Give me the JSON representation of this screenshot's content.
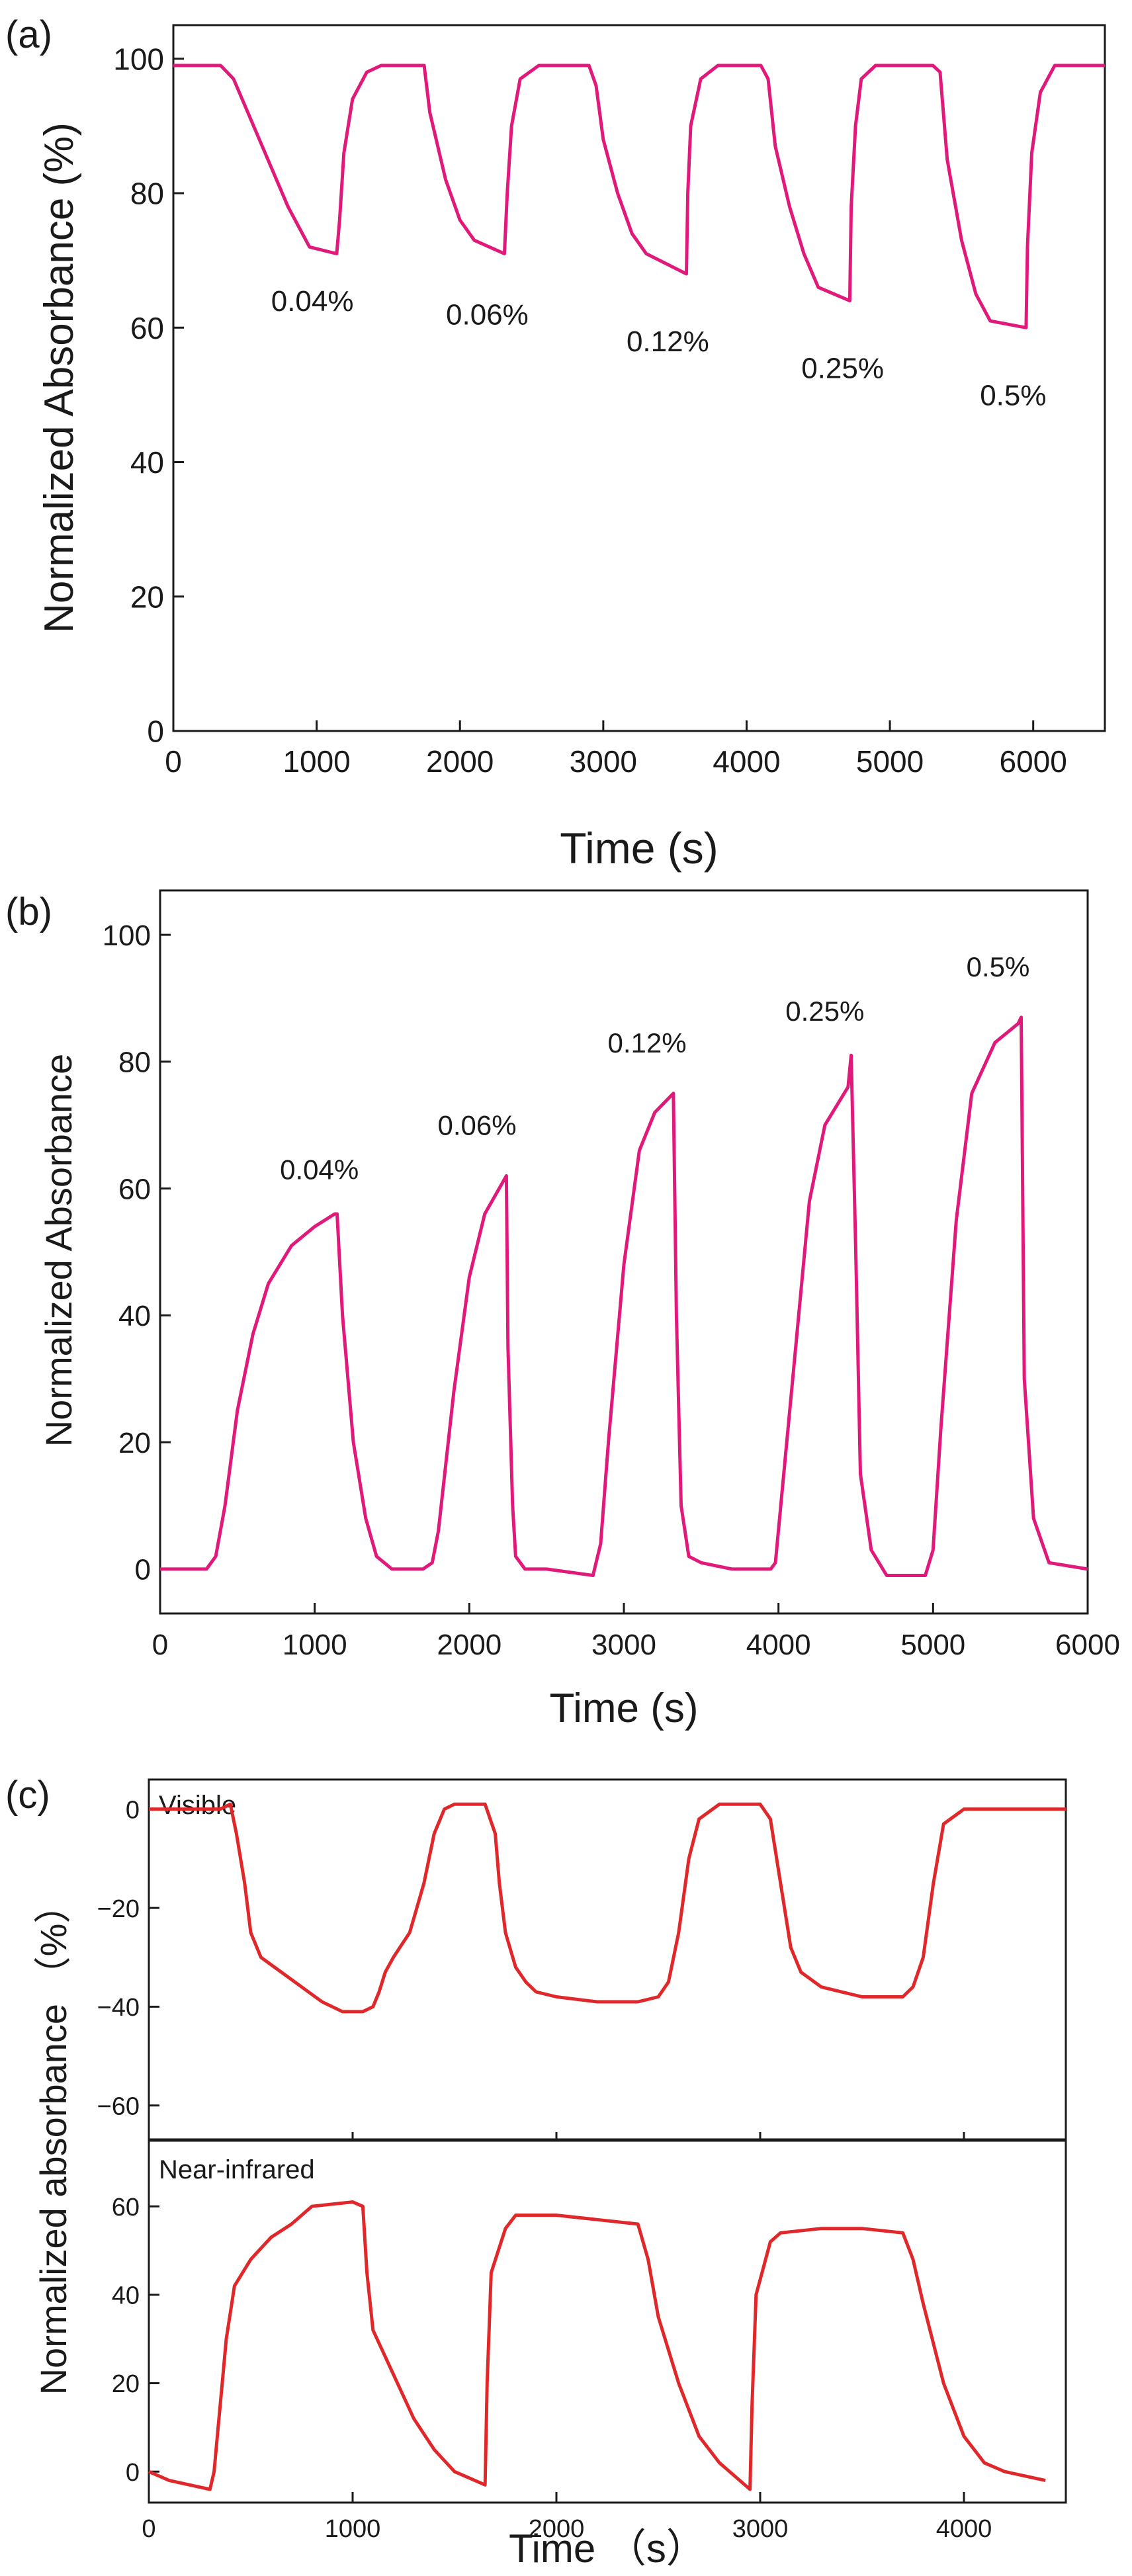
{
  "chart_data": [
    {
      "panel_label": "(a)",
      "type": "line",
      "xlabel": "Time (s)",
      "ylabel": "Normalized Absorbance (%)",
      "xlim": [
        0,
        6500
      ],
      "ylim": [
        0,
        105
      ],
      "xticks": [
        0,
        1000,
        2000,
        3000,
        4000,
        5000,
        6000
      ],
      "yticks": [
        0,
        20,
        40,
        60,
        80,
        100
      ],
      "grid": false,
      "line_color": "#e0197a",
      "series": [
        {
          "name": "Normalized Absorbance",
          "x": [
            0,
            330,
            420,
            600,
            800,
            950,
            1140,
            1160,
            1190,
            1250,
            1350,
            1450,
            1650,
            1750,
            1790,
            1900,
            2000,
            2100,
            2310,
            2330,
            2360,
            2420,
            2550,
            2600,
            2700,
            2900,
            2950,
            3000,
            3100,
            3200,
            3300,
            3580,
            3590,
            3610,
            3680,
            3800,
            3900,
            4100,
            4150,
            4200,
            4300,
            4400,
            4500,
            4720,
            4730,
            4760,
            4800,
            4900,
            5300,
            5350,
            5400,
            5500,
            5600,
            5700,
            5950,
            5960,
            5990,
            6050,
            6150,
            6300,
            6500
          ],
          "y": [
            99,
            99,
            97,
            88,
            78,
            72,
            71,
            76,
            86,
            94,
            98,
            99,
            99,
            99,
            92,
            82,
            76,
            73,
            71,
            80,
            90,
            97,
            99,
            99,
            99,
            99,
            96,
            88,
            80,
            74,
            71,
            68,
            80,
            90,
            97,
            99,
            99,
            99,
            97,
            87,
            78,
            71,
            66,
            64,
            78,
            90,
            97,
            99,
            99,
            98,
            85,
            73,
            65,
            61,
            60,
            72,
            86,
            95,
            99,
            99,
            99
          ]
        }
      ],
      "annotations": [
        {
          "text": "0.04%",
          "x": 970,
          "y": 64
        },
        {
          "text": "0.06%",
          "x": 2190,
          "y": 62
        },
        {
          "text": "0.12%",
          "x": 3450,
          "y": 58
        },
        {
          "text": "0.25%",
          "x": 4670,
          "y": 54
        },
        {
          "text": "0.5%",
          "x": 5860,
          "y": 50
        }
      ]
    },
    {
      "panel_label": "(b)",
      "type": "line",
      "xlabel": "Time (s)",
      "ylabel": "Normalized Absorbance",
      "xlim": [
        0,
        6000
      ],
      "ylim": [
        -7,
        107
      ],
      "xticks": [
        0,
        1000,
        2000,
        3000,
        4000,
        5000,
        6000
      ],
      "yticks": [
        0,
        20,
        40,
        60,
        80,
        100
      ],
      "grid": false,
      "line_color": "#e0197a",
      "series": [
        {
          "name": "Normalized Absorbance",
          "x": [
            0,
            300,
            360,
            420,
            500,
            600,
            700,
            850,
            1000,
            1130,
            1145,
            1180,
            1250,
            1330,
            1400,
            1500,
            1700,
            1760,
            1800,
            1900,
            2000,
            2100,
            2240,
            2250,
            2280,
            2300,
            2360,
            2500,
            2800,
            2850,
            2900,
            3000,
            3100,
            3200,
            3320,
            3340,
            3370,
            3420,
            3500,
            3700,
            3950,
            3980,
            4100,
            4200,
            4300,
            4450,
            4470,
            4500,
            4530,
            4600,
            4700,
            4900,
            4950,
            5000,
            5050,
            5150,
            5250,
            5400,
            5550,
            5570,
            5590,
            5650,
            5750,
            6000
          ],
          "y": [
            0,
            0,
            2,
            10,
            25,
            37,
            45,
            51,
            54,
            56,
            56,
            40,
            20,
            8,
            2,
            0,
            0,
            1,
            6,
            28,
            46,
            56,
            62,
            35,
            10,
            2,
            0,
            0,
            -1,
            4,
            20,
            48,
            66,
            72,
            75,
            40,
            10,
            2,
            1,
            0,
            0,
            1,
            32,
            58,
            70,
            76,
            81,
            50,
            15,
            3,
            -1,
            -1,
            -1,
            3,
            22,
            55,
            75,
            83,
            86,
            87,
            30,
            8,
            1,
            0
          ]
        }
      ],
      "annotations": [
        {
          "text": "0.04%",
          "x": 1030,
          "y": 63
        },
        {
          "text": "0.06%",
          "x": 2050,
          "y": 70
        },
        {
          "text": "0.12%",
          "x": 3150,
          "y": 83
        },
        {
          "text": "0.25%",
          "x": 4300,
          "y": 88
        },
        {
          "text": "0.5%",
          "x": 5420,
          "y": 95
        }
      ]
    },
    {
      "panel_label": "(c)",
      "panel_title": "Visible",
      "type": "line",
      "xlabel": "",
      "ylabel": "Normalized absorbance （%）",
      "xlim": [
        0,
        4500
      ],
      "ylim": [
        -67,
        6
      ],
      "xticks": [
        0,
        1000,
        2000,
        3000,
        4000
      ],
      "yticks": [
        0,
        -20,
        -40,
        -60
      ],
      "grid": false,
      "line_color": "#e0282b",
      "series": [
        {
          "name": "Visible",
          "x": [
            0,
            350,
            400,
            430,
            470,
            500,
            550,
            650,
            750,
            850,
            950,
            1050,
            1100,
            1130,
            1160,
            1200,
            1280,
            1350,
            1400,
            1450,
            1500,
            1650,
            1700,
            1720,
            1750,
            1800,
            1850,
            1900,
            2000,
            2200,
            2400,
            2500,
            2550,
            2600,
            2650,
            2700,
            2800,
            3000,
            3050,
            3100,
            3150,
            3200,
            3300,
            3500,
            3700,
            3750,
            3800,
            3850,
            3900,
            4000,
            4500
          ],
          "y": [
            0,
            0,
            1,
            -5,
            -15,
            -25,
            -30,
            -33,
            -36,
            -39,
            -41,
            -41,
            -40,
            -37,
            -33,
            -30,
            -25,
            -15,
            -5,
            0,
            1,
            1,
            -5,
            -15,
            -25,
            -32,
            -35,
            -37,
            -38,
            -39,
            -39,
            -38,
            -35,
            -25,
            -10,
            -2,
            1,
            1,
            -2,
            -15,
            -28,
            -33,
            -36,
            -38,
            -38,
            -36,
            -30,
            -15,
            -3,
            0,
            0
          ]
        }
      ],
      "shared_x_with_next": true
    },
    {
      "panel_label": "",
      "panel_title": "Near-infrared",
      "type": "line",
      "xlabel": "Time （s）",
      "ylabel": "Normalized absorbance （%）",
      "xlim": [
        0,
        4500
      ],
      "ylim": [
        -7,
        75
      ],
      "xticks": [
        0,
        1000,
        2000,
        3000,
        4000
      ],
      "yticks": [
        0,
        20,
        40,
        60
      ],
      "grid": false,
      "line_color": "#e0282b",
      "series": [
        {
          "name": "Near-infrared",
          "x": [
            0,
            100,
            200,
            300,
            320,
            340,
            360,
            380,
            420,
            500,
            600,
            700,
            800,
            1000,
            1050,
            1070,
            1100,
            1200,
            1300,
            1400,
            1500,
            1600,
            1650,
            1660,
            1680,
            1750,
            1800,
            2000,
            2200,
            2400,
            2450,
            2500,
            2600,
            2700,
            2800,
            2900,
            2950,
            2960,
            2980,
            3050,
            3100,
            3300,
            3500,
            3700,
            3750,
            3800,
            3900,
            4000,
            4100,
            4200,
            4400
          ],
          "y": [
            0,
            -2,
            -3,
            -4,
            0,
            10,
            20,
            30,
            42,
            48,
            53,
            56,
            60,
            61,
            60,
            45,
            32,
            22,
            12,
            5,
            0,
            -2,
            -3,
            20,
            45,
            55,
            58,
            58,
            57,
            56,
            48,
            35,
            20,
            8,
            2,
            -2,
            -4,
            15,
            40,
            52,
            54,
            55,
            55,
            54,
            48,
            38,
            20,
            8,
            2,
            0,
            -2
          ]
        }
      ]
    }
  ]
}
